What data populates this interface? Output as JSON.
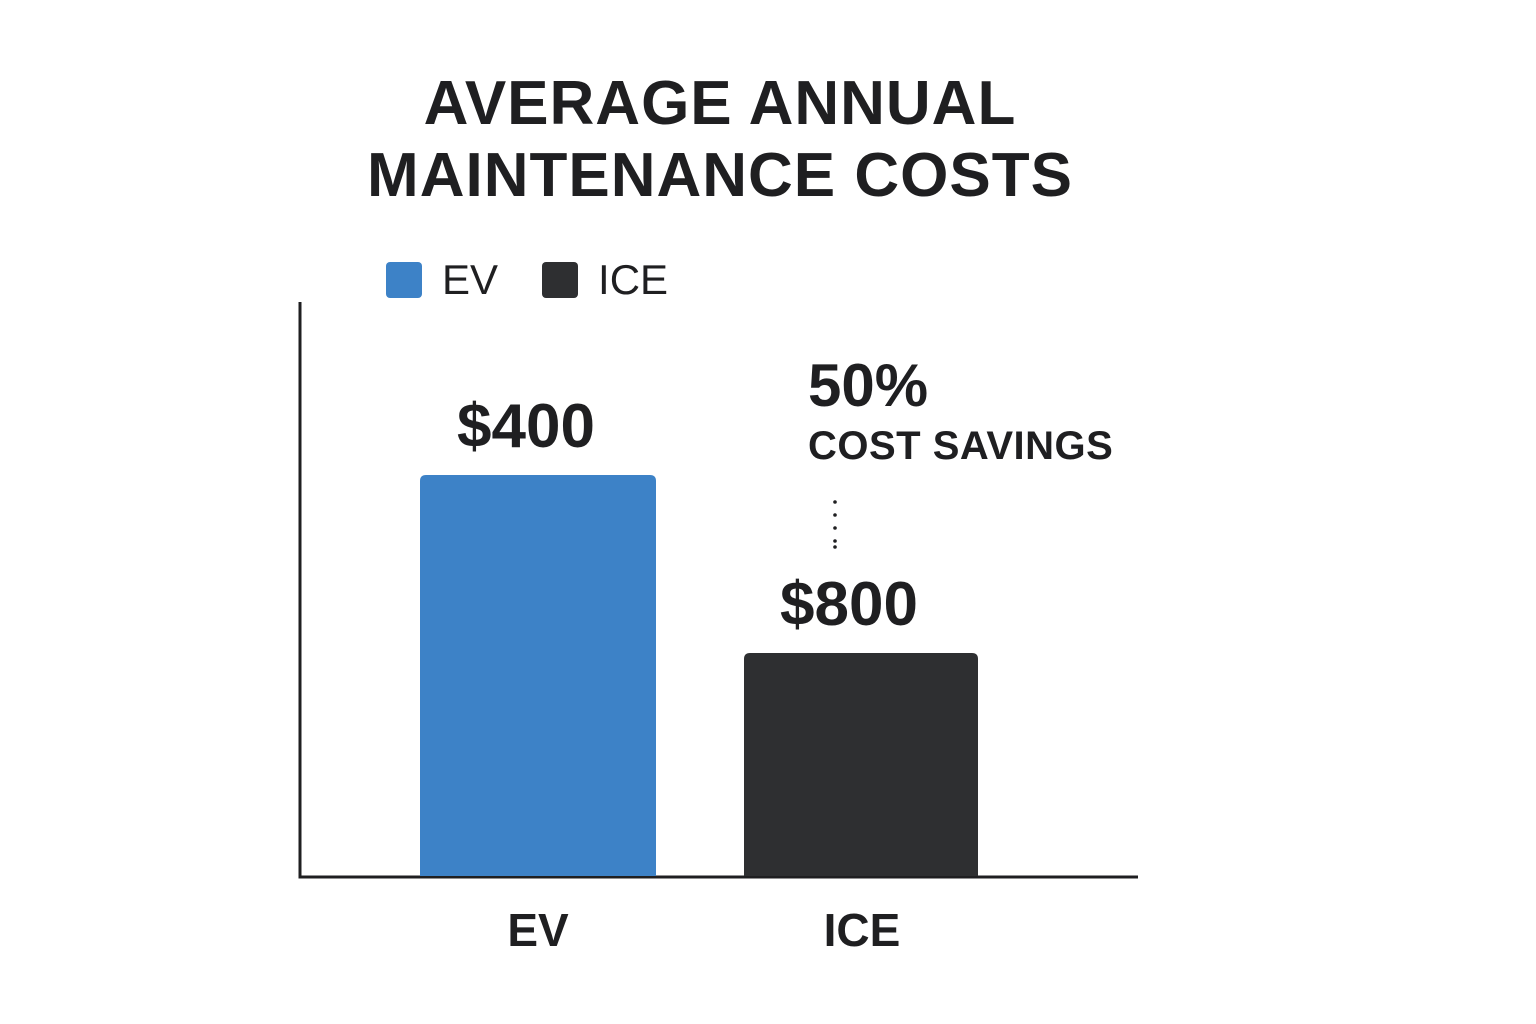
{
  "chart_data": {
    "type": "bar",
    "title": [
      "AVERAGE ANNUAL",
      "MAINTENANCE COSTS"
    ],
    "categories": [
      "EV",
      "ICE"
    ],
    "series": [
      {
        "values": [
          400,
          800
        ],
        "data_labels": [
          "$400",
          "$800"
        ],
        "colors": [
          "#3d82c7",
          "#2e2f31"
        ]
      }
    ],
    "legend": {
      "placement": "top-left",
      "entries": [
        {
          "label": "EV",
          "color": "#3d82c7"
        },
        {
          "label": "ICE",
          "color": "#2e2f31"
        }
      ]
    },
    "annotation": {
      "value": "50%",
      "label": "COST SAVINGS",
      "style": "dotted-leader"
    },
    "xlabel": "",
    "ylabel": "",
    "grid": false
  }
}
